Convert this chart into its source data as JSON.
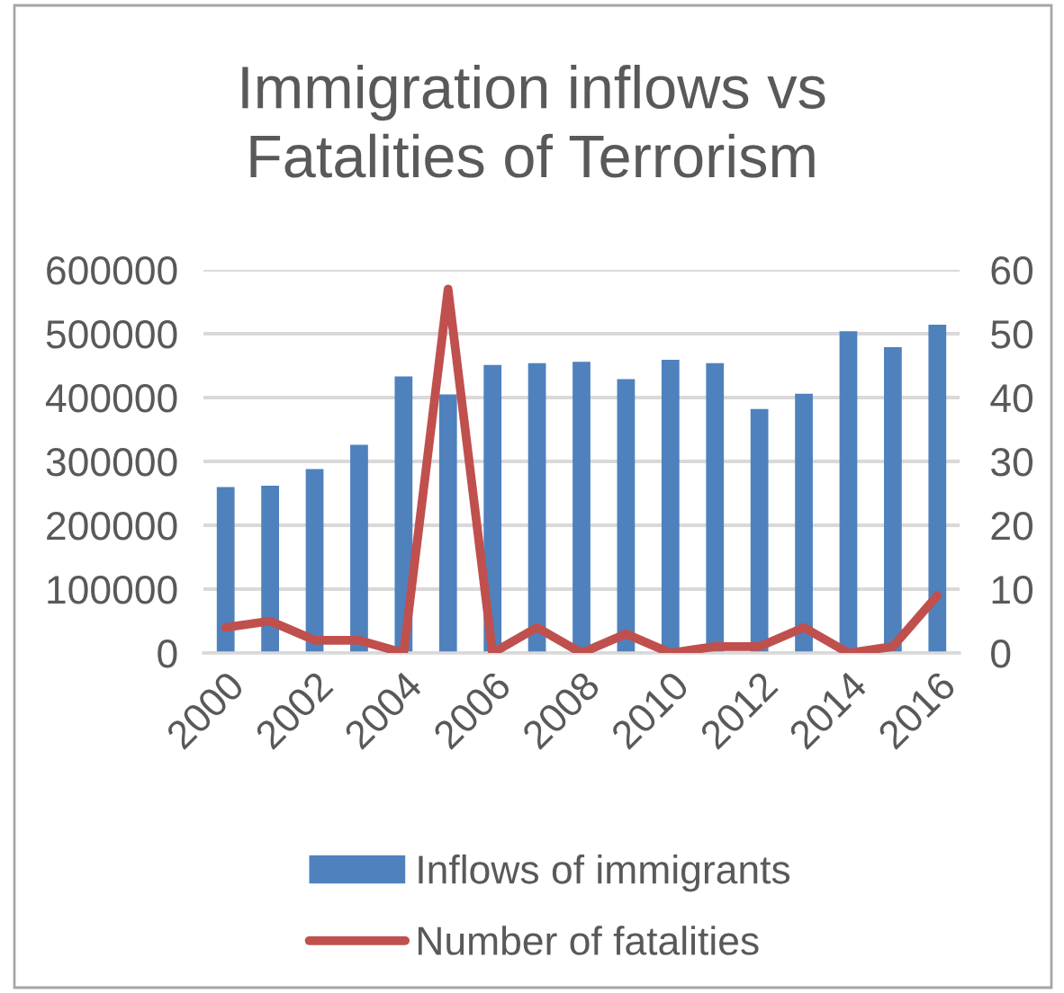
{
  "chart_data": {
    "type": "bar",
    "title": "Immigration inflows vs\nFatalities of Terrorism",
    "categories": [
      "2000",
      null,
      "2002",
      null,
      "2004",
      null,
      "2006",
      null,
      "2008",
      null,
      "2010",
      null,
      "2012",
      null,
      "2014",
      null,
      "2016"
    ],
    "series": [
      {
        "name": "Inflows of immigrants",
        "color": "#4f81bd",
        "values": [
          260000,
          262000,
          288000,
          326000,
          433000,
          405000,
          451000,
          454000,
          456000,
          429000,
          459000,
          454000,
          382000,
          406000,
          504000,
          479000,
          514000
        ]
      },
      {
        "name": "Number of fatalities",
        "type": "line",
        "axis": "y2",
        "color": "#c0504d",
        "values": [
          4,
          5,
          2,
          2,
          0,
          57,
          0,
          4,
          0,
          3,
          0,
          1,
          1,
          4,
          0,
          1,
          9
        ]
      }
    ],
    "ylim": [
      0,
      600000
    ],
    "yticks": [
      0,
      100000,
      200000,
      300000,
      400000,
      500000,
      600000
    ],
    "y2lim": [
      0,
      60
    ],
    "y2ticks": [
      0,
      10,
      20,
      30,
      40,
      50,
      60
    ],
    "grid": "y",
    "legend": "bottom"
  }
}
